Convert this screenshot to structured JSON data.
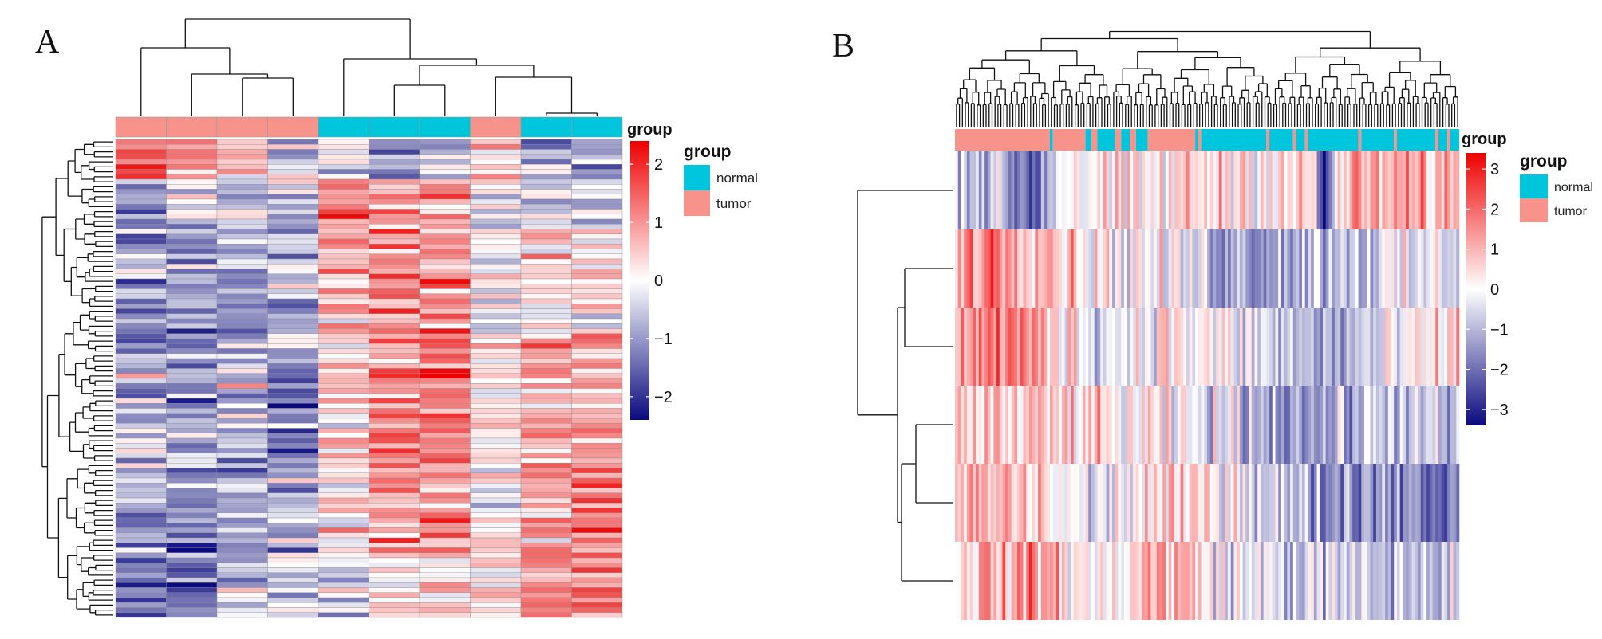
{
  "colors": {
    "high": "#ee0000",
    "mid": "#ffffff",
    "low": "#0a0a7f",
    "normal": "#00c6dd",
    "tumor": "#f8938b"
  },
  "chart_data": [
    {
      "type": "heatmap",
      "panel_label": "A",
      "title": "",
      "rows": 96,
      "columns": 10,
      "column_groups": [
        "tumor",
        "tumor",
        "tumor",
        "tumor",
        "normal",
        "normal",
        "normal",
        "tumor",
        "normal",
        "normal"
      ],
      "color_scale": {
        "min": -2.4,
        "max": 2.4,
        "ticks": [
          2,
          1,
          0,
          -1,
          -2
        ],
        "tick_labels": [
          "2",
          "1",
          "0",
          "−1",
          "−2"
        ]
      },
      "annotation_title": "group",
      "legend": {
        "title": "group",
        "entries": [
          {
            "label": "normal",
            "color": "#00c6dd"
          },
          {
            "label": "tumor",
            "color": "#f8938b"
          }
        ]
      },
      "column_profile": [
        1.2,
        0.3,
        0.0,
        -0.2,
        -0.4,
        -0.7,
        -0.5,
        0.2,
        -0.5,
        -0.5
      ],
      "row_blocks": [
        {
          "rows": 8,
          "profile": [
            1.6,
            0.7,
            0.4,
            -0.3,
            0.0,
            -0.7,
            -0.6,
            0.4,
            -0.9,
            -0.6
          ]
        },
        {
          "rows": 10,
          "profile": [
            -1.1,
            -0.3,
            -0.6,
            -0.6,
            1.5,
            0.8,
            1.1,
            -0.2,
            -0.4,
            -0.4
          ]
        },
        {
          "rows": 22,
          "profile": [
            -1.0,
            -0.9,
            -1.0,
            -1.0,
            0.6,
            1.2,
            1.1,
            0.0,
            0.4,
            0.3
          ]
        },
        {
          "rows": 26,
          "profile": [
            -0.7,
            -0.9,
            -0.5,
            -1.2,
            0.4,
            1.3,
            1.3,
            0.1,
            0.9,
            0.7
          ]
        },
        {
          "rows": 18,
          "profile": [
            -0.9,
            -1.1,
            -0.8,
            -0.8,
            0.2,
            1.0,
            0.9,
            0.4,
            1.0,
            1.0
          ]
        },
        {
          "rows": 12,
          "profile": [
            -1.3,
            -1.4,
            -0.6,
            -0.3,
            -0.5,
            0.5,
            0.6,
            0.2,
            1.1,
            1.2
          ]
        }
      ]
    },
    {
      "type": "heatmap",
      "panel_label": "B",
      "title": "",
      "rows": 6,
      "columns": 170,
      "color_scale": {
        "min": -3.4,
        "max": 3.4,
        "ticks": [
          3,
          2,
          1,
          0,
          -1,
          -2,
          -3
        ],
        "tick_labels": [
          "3",
          "2",
          "1",
          "0",
          "−1",
          "−2",
          "−3"
        ]
      },
      "annotation_title": "group",
      "legend": {
        "title": "group",
        "entries": [
          {
            "label": "normal",
            "color": "#00c6dd"
          },
          {
            "label": "tumor",
            "color": "#f8938b"
          }
        ]
      },
      "group_runs": [
        {
          "group": "tumor",
          "count": 32
        },
        {
          "group": "normal",
          "count": 1
        },
        {
          "group": "tumor",
          "count": 11
        },
        {
          "group": "normal",
          "count": 2
        },
        {
          "group": "tumor",
          "count": 2
        },
        {
          "group": "normal",
          "count": 6
        },
        {
          "group": "tumor",
          "count": 2
        },
        {
          "group": "normal",
          "count": 3
        },
        {
          "group": "tumor",
          "count": 2
        },
        {
          "group": "normal",
          "count": 4
        },
        {
          "group": "tumor",
          "count": 16
        },
        {
          "group": "normal",
          "count": 1
        },
        {
          "group": "tumor",
          "count": 1
        },
        {
          "group": "normal",
          "count": 22
        },
        {
          "group": "tumor",
          "count": 1
        },
        {
          "group": "normal",
          "count": 8
        },
        {
          "group": "tumor",
          "count": 1
        },
        {
          "group": "normal",
          "count": 3
        },
        {
          "group": "tumor",
          "count": 1
        },
        {
          "group": "normal",
          "count": 17
        },
        {
          "group": "tumor",
          "count": 1
        },
        {
          "group": "normal",
          "count": 11
        },
        {
          "group": "tumor",
          "count": 1
        },
        {
          "group": "normal",
          "count": 13
        },
        {
          "group": "tumor",
          "count": 1
        },
        {
          "group": "normal",
          "count": 3
        },
        {
          "group": "tumor",
          "count": 1
        },
        {
          "group": "normal",
          "count": 3
        }
      ],
      "row_profiles": [
        [
          [
            0,
            -0.4
          ],
          [
            12,
            -0.8
          ],
          [
            26,
            -2.2
          ],
          [
            36,
            0.3
          ],
          [
            60,
            -0.1
          ],
          [
            80,
            0.6
          ],
          [
            104,
            0.5
          ],
          [
            120,
            0.4
          ],
          [
            124,
            -3.3
          ],
          [
            130,
            0.9
          ],
          [
            150,
            1.1
          ],
          [
            169,
            0.9
          ]
        ],
        [
          [
            0,
            1.4
          ],
          [
            12,
            2.0
          ],
          [
            30,
            1.3
          ],
          [
            50,
            0.1
          ],
          [
            75,
            -0.3
          ],
          [
            95,
            -1.2
          ],
          [
            115,
            -0.9
          ],
          [
            135,
            -0.6
          ],
          [
            155,
            -0.5
          ],
          [
            169,
            -0.2
          ]
        ],
        [
          [
            0,
            1.2
          ],
          [
            15,
            1.9
          ],
          [
            30,
            0.9
          ],
          [
            50,
            -0.4
          ],
          [
            70,
            0.4
          ],
          [
            95,
            -0.3
          ],
          [
            125,
            -1.3
          ],
          [
            150,
            -0.4
          ],
          [
            169,
            0.6
          ]
        ],
        [
          [
            0,
            0.9
          ],
          [
            20,
            0.5
          ],
          [
            40,
            0.6
          ],
          [
            60,
            0.0
          ],
          [
            90,
            -0.5
          ],
          [
            120,
            -1.4
          ],
          [
            150,
            -0.6
          ],
          [
            169,
            -1.4
          ]
        ],
        [
          [
            0,
            1.0
          ],
          [
            25,
            0.8
          ],
          [
            45,
            -0.6
          ],
          [
            60,
            0.2
          ],
          [
            90,
            0.4
          ],
          [
            120,
            -1.4
          ],
          [
            150,
            -1.3
          ],
          [
            169,
            -2.2
          ]
        ],
        [
          [
            0,
            0.8
          ],
          [
            30,
            1.4
          ],
          [
            45,
            -0.2
          ],
          [
            70,
            1.3
          ],
          [
            90,
            -0.2
          ],
          [
            120,
            -0.7
          ],
          [
            150,
            -0.9
          ],
          [
            169,
            -0.6
          ]
        ]
      ]
    }
  ]
}
